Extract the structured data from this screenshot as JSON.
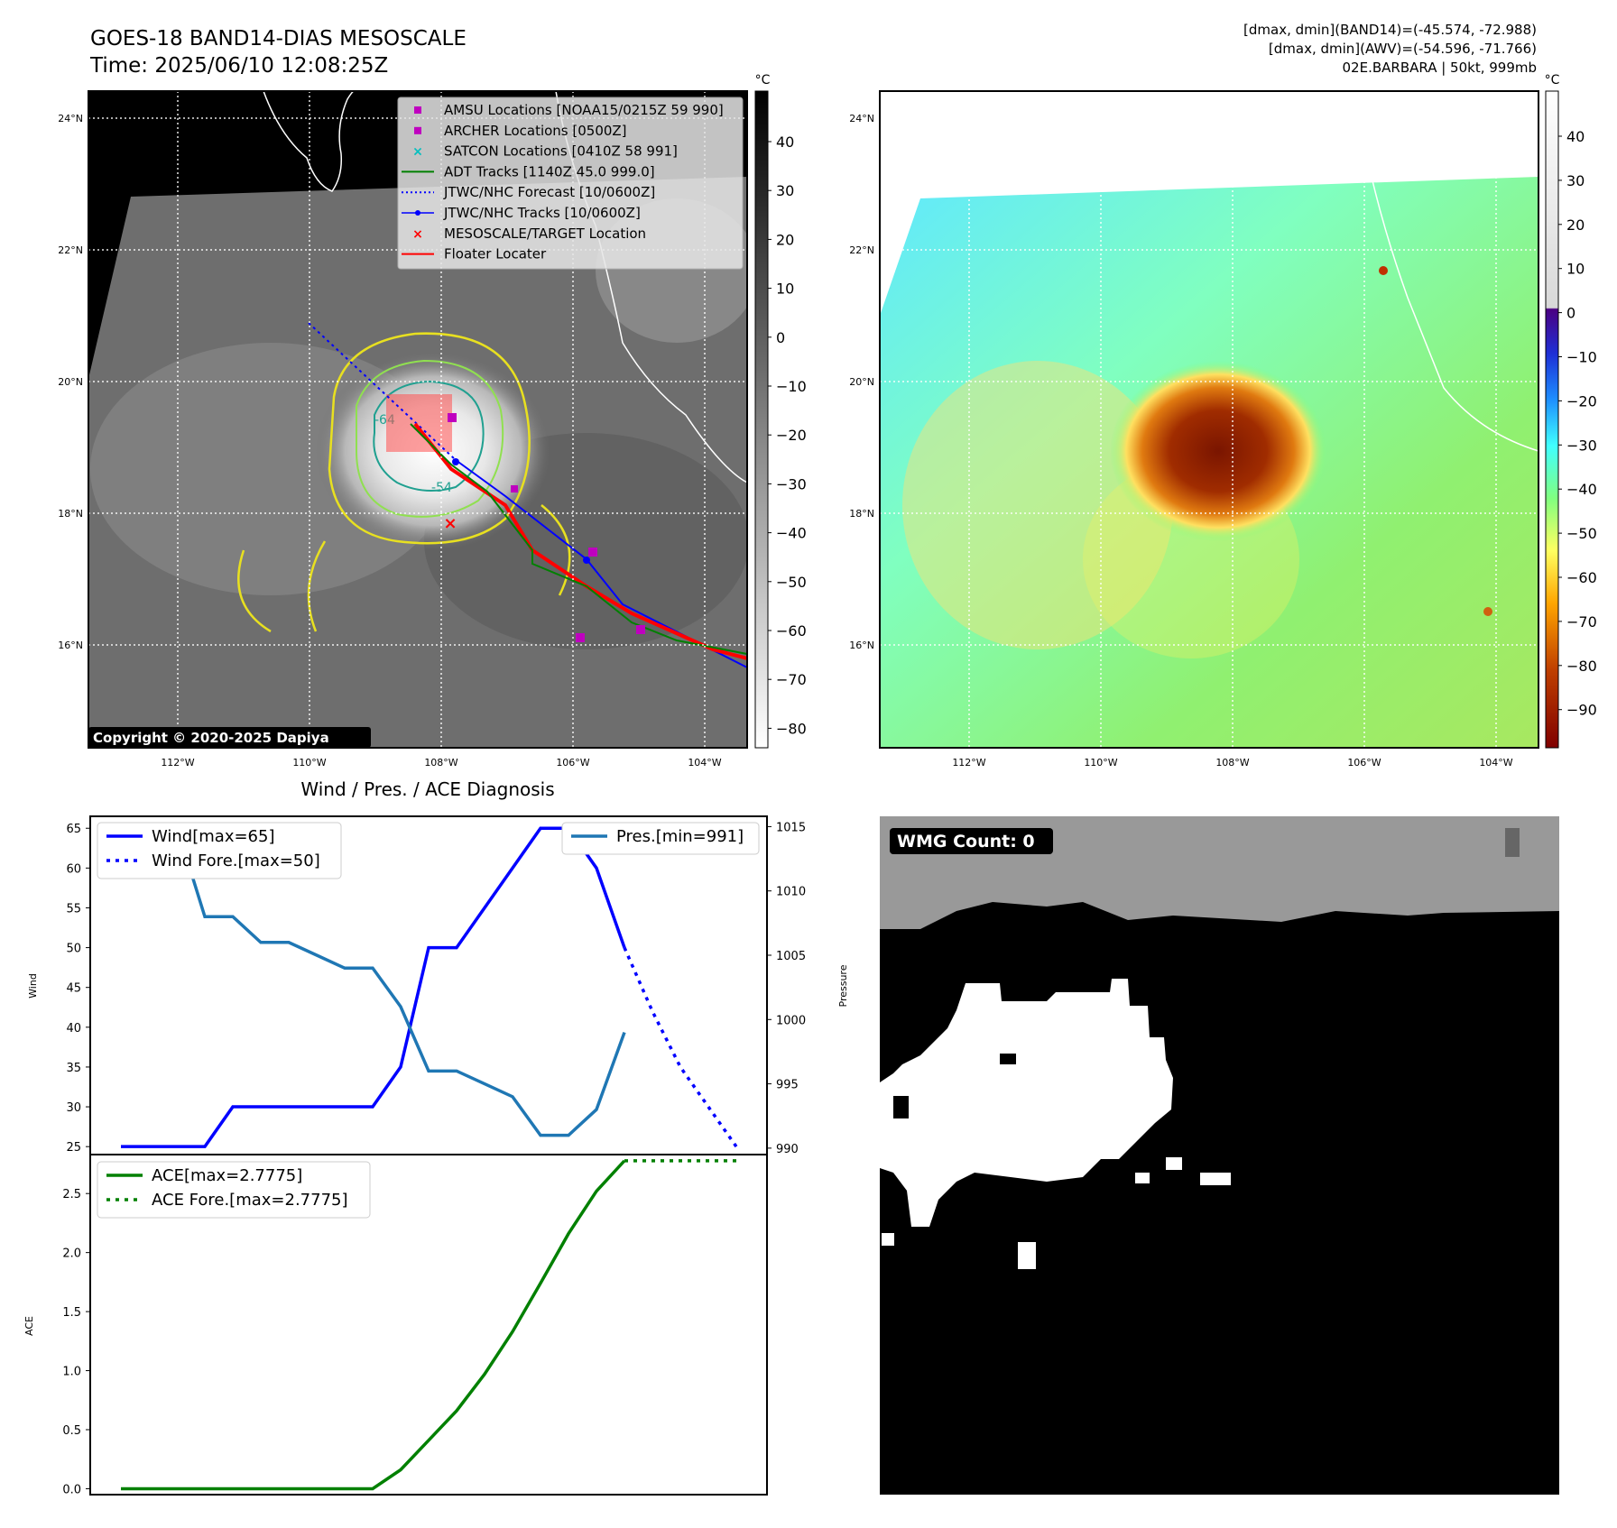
{
  "header": {
    "title": "GOES-18 BAND14-DIAS MESOSCALE",
    "time": "Time: 2025/06/10 12:08:25Z",
    "info_line1": "[dmax, dmin](BAND14)=(-45.574, -72.988)",
    "info_line2": "[dmax, dmin](AWV)=(-54.596, -71.766)",
    "info_line3": "02E.BARBARA | 50kt, 999mb"
  },
  "map_axes": {
    "lat_labels": [
      "24°N",
      "22°N",
      "20°N",
      "18°N",
      "16°N"
    ],
    "lat_values": [
      24,
      22,
      20,
      18,
      16
    ],
    "lon_labels": [
      "112°W",
      "110°W",
      "108°W",
      "106°W",
      "104°W"
    ],
    "lon_values": [
      -112,
      -110,
      -108,
      -106,
      -104
    ]
  },
  "colorbar_left": {
    "unit": "°C",
    "ticks": [
      "40",
      "30",
      "20",
      "10",
      "0",
      "−10",
      "−20",
      "−30",
      "−40",
      "−50",
      "−60",
      "−70",
      "−80"
    ]
  },
  "colorbar_right": {
    "unit": "°C",
    "ticks": [
      "40",
      "30",
      "20",
      "10",
      "0",
      "−10",
      "−20",
      "−30",
      "−40",
      "−50",
      "−60",
      "−70",
      "−80",
      "−90"
    ]
  },
  "legend": [
    {
      "label": "AMSU Locations [NOAA15/0215Z 59 990]",
      "marker": "square",
      "color": "#bf00bf"
    },
    {
      "label": "ARCHER Locations [0500Z]",
      "marker": "square",
      "color": "#bf00bf"
    },
    {
      "label": "SATCON Locations [0410Z 58 991]",
      "marker": "x",
      "color": "#00bfbf"
    },
    {
      "label": "ADT Tracks [1140Z 45.0 999.0]",
      "marker": "line",
      "color": "#008000"
    },
    {
      "label": "JTWC/NHC Forecast [10/0600Z]",
      "marker": "dotted",
      "color": "#0000ff"
    },
    {
      "label": "JTWC/NHC Tracks [10/0600Z]",
      "marker": "line-dot",
      "color": "#0000ff"
    },
    {
      "label": "MESOSCALE/TARGET Location",
      "marker": "x",
      "color": "#ff0000"
    },
    {
      "label": "Floater Locater",
      "marker": "line",
      "color": "#ff0000"
    }
  ],
  "contour_labels": [
    "-64",
    "-54"
  ],
  "copyright": "Copyright © 2020-2025 Dapiya",
  "wmg_label": "WMG Count: 0",
  "diagnosis_title": "Wind / Pres. / ACE Diagnosis",
  "chart_data": [
    {
      "type": "line",
      "title": "Wind / Pres. / ACE Diagnosis",
      "ylabel": "Wind",
      "y2label": "Pressure",
      "ylim": [
        24,
        66.5
      ],
      "y2lim": [
        989.5,
        1015.8
      ],
      "yticks": [
        "25",
        "30",
        "35",
        "40",
        "45",
        "50",
        "55",
        "60",
        "65"
      ],
      "y2ticks": [
        "990",
        "995",
        "1000",
        "1005",
        "1010",
        "1015"
      ],
      "series": [
        {
          "name": "Wind[max=65]",
          "color": "#0000ff",
          "style": "solid",
          "x": [
            0,
            1,
            2,
            3,
            4,
            5,
            6,
            7,
            8,
            9,
            10,
            11,
            12,
            13,
            14,
            15,
            16,
            17,
            18
          ],
          "values": [
            25,
            25,
            25,
            25,
            30,
            30,
            30,
            30,
            30,
            30,
            35,
            50,
            50,
            55,
            60,
            65,
            65,
            60,
            50
          ]
        },
        {
          "name": "Wind Fore.[max=50]",
          "color": "#0000ff",
          "style": "dotted",
          "x": [
            18,
            19,
            20,
            21,
            22
          ],
          "values": [
            50,
            42,
            35,
            30,
            25
          ]
        },
        {
          "name": "Pres.[min=991]",
          "color": "#1f77b4",
          "style": "solid",
          "axis": "right",
          "x": [
            0,
            1,
            2,
            3,
            4,
            5,
            6,
            7,
            8,
            9,
            10,
            11,
            12,
            13,
            14,
            15,
            16,
            17,
            18
          ],
          "values": [
            1015,
            1015,
            1015,
            1008,
            1008,
            1006,
            1006,
            1005,
            1004,
            1004,
            1001,
            996,
            996,
            995,
            994,
            991,
            991,
            993,
            999
          ]
        }
      ]
    },
    {
      "type": "line",
      "ylabel": "ACE",
      "ylim": [
        -0.05,
        2.83
      ],
      "yticks": [
        "0.0",
        "0.5",
        "1.0",
        "1.5",
        "2.0",
        "2.5"
      ],
      "series": [
        {
          "name": "ACE[max=2.7775]",
          "color": "#008000",
          "style": "solid",
          "x": [
            0,
            1,
            2,
            3,
            4,
            5,
            6,
            7,
            8,
            9,
            10,
            11,
            12,
            13,
            14,
            15,
            16,
            17,
            18
          ],
          "values": [
            0,
            0,
            0,
            0,
            0,
            0,
            0,
            0,
            0,
            0,
            0.16,
            0.41,
            0.66,
            0.97,
            1.33,
            1.74,
            2.16,
            2.52,
            2.7775
          ]
        },
        {
          "name": "ACE Fore.[max=2.7775]",
          "color": "#008000",
          "style": "dotted",
          "x": [
            18,
            19,
            20,
            21,
            22
          ],
          "values": [
            2.7775,
            2.7775,
            2.7775,
            2.7775,
            2.7775
          ]
        }
      ]
    }
  ]
}
